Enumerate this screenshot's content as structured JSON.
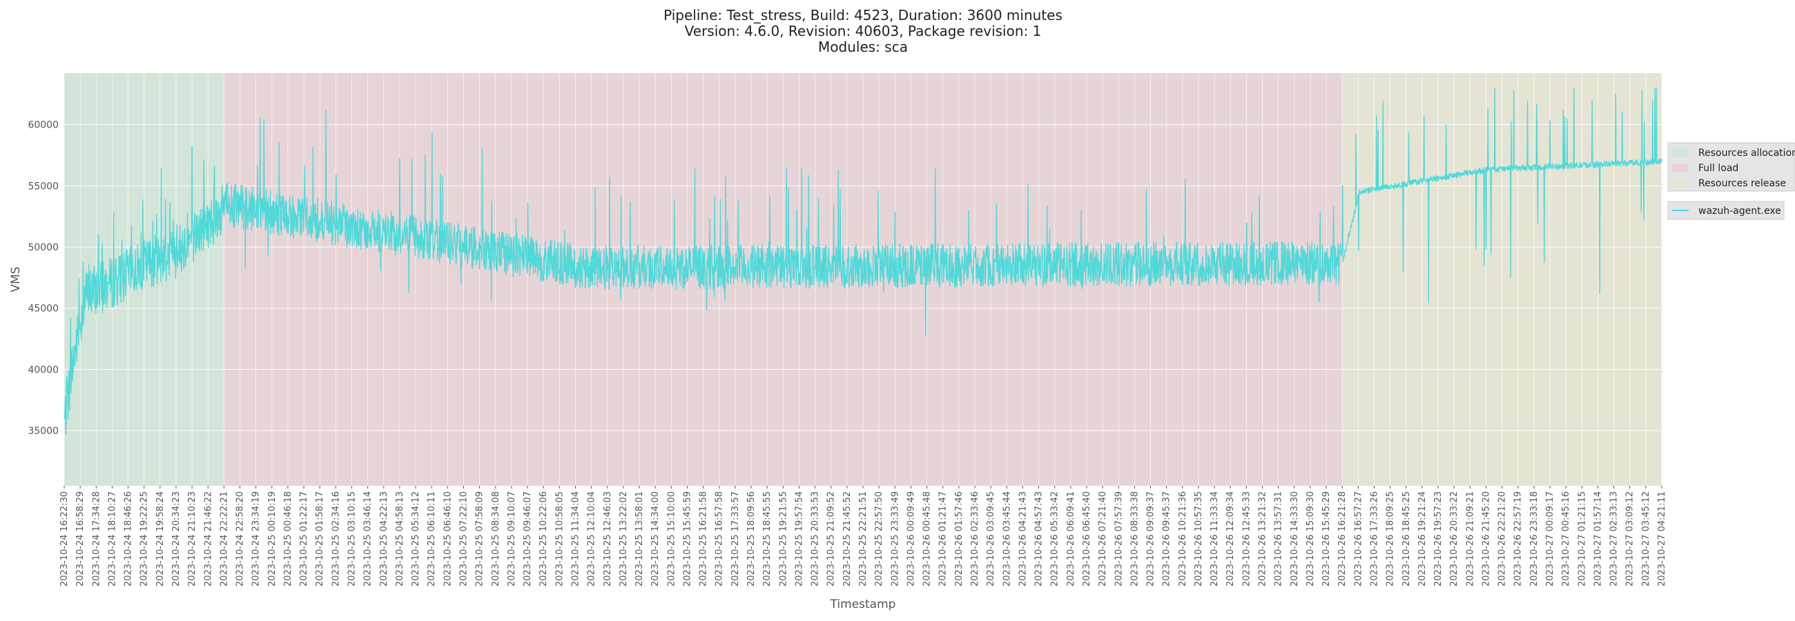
{
  "chart_data": {
    "type": "line",
    "title_lines": [
      "Pipeline: Test_stress, Build: 4523, Duration: 3600 minutes",
      "Version: 4.6.0, Revision: 40603, Package revision: 1",
      "Modules: sca"
    ],
    "xlabel": "Timestamp",
    "ylabel": "VMS",
    "ylim": [
      30500,
      64200
    ],
    "yticks": [
      35000,
      40000,
      45000,
      50000,
      55000,
      60000
    ],
    "grid": true,
    "legend_placement": "right, outside plot area",
    "x_ticks": [
      "2023-10-24 16:22:30",
      "2023-10-24 16:58:29",
      "2023-10-24 17:34:28",
      "2023-10-24 18:10:27",
      "2023-10-24 18:46:26",
      "2023-10-24 19:22:25",
      "2023-10-24 19:58:24",
      "2023-10-24 20:34:23",
      "2023-10-24 21:10:23",
      "2023-10-24 21:46:22",
      "2023-10-24 22:22:21",
      "2023-10-24 22:58:20",
      "2023-10-24 23:34:19",
      "2023-10-25 00:10:19",
      "2023-10-25 00:46:18",
      "2023-10-25 01:22:17",
      "2023-10-25 01:58:17",
      "2023-10-25 02:34:16",
      "2023-10-25 03:10:15",
      "2023-10-25 03:46:14",
      "2023-10-25 04:22:13",
      "2023-10-25 04:58:13",
      "2023-10-25 05:34:12",
      "2023-10-25 06:10:11",
      "2023-10-25 06:46:10",
      "2023-10-25 07:22:10",
      "2023-10-25 07:58:09",
      "2023-10-25 08:34:08",
      "2023-10-25 09:10:07",
      "2023-10-25 09:46:07",
      "2023-10-25 10:22:06",
      "2023-10-25 10:58:05",
      "2023-10-25 11:34:04",
      "2023-10-25 12:10:04",
      "2023-10-25 12:46:03",
      "2023-10-25 13:22:02",
      "2023-10-25 13:58:01",
      "2023-10-25 14:34:00",
      "2023-10-25 15:10:00",
      "2023-10-25 15:45:59",
      "2023-10-25 16:21:58",
      "2023-10-25 16:57:58",
      "2023-10-25 17:33:57",
      "2023-10-25 18:09:56",
      "2023-10-25 18:45:55",
      "2023-10-25 19:21:55",
      "2023-10-25 19:57:54",
      "2023-10-25 20:33:53",
      "2023-10-25 21:09:52",
      "2023-10-25 21:45:52",
      "2023-10-25 22:21:51",
      "2023-10-25 22:57:50",
      "2023-10-25 23:33:49",
      "2023-10-26 00:09:49",
      "2023-10-26 00:45:48",
      "2023-10-26 01:21:47",
      "2023-10-26 01:57:46",
      "2023-10-26 02:33:46",
      "2023-10-26 03:09:45",
      "2023-10-26 03:45:44",
      "2023-10-26 04:21:43",
      "2023-10-26 04:57:43",
      "2023-10-26 05:33:42",
      "2023-10-26 06:09:41",
      "2023-10-26 06:45:40",
      "2023-10-26 07:21:40",
      "2023-10-26 07:57:39",
      "2023-10-26 08:33:38",
      "2023-10-26 09:09:37",
      "2023-10-26 09:45:37",
      "2023-10-26 10:21:36",
      "2023-10-26 10:57:35",
      "2023-10-26 11:33:34",
      "2023-10-26 12:09:34",
      "2023-10-26 12:45:33",
      "2023-10-26 13:21:32",
      "2023-10-26 13:57:31",
      "2023-10-26 14:33:30",
      "2023-10-26 15:09:30",
      "2023-10-26 15:45:29",
      "2023-10-26 16:21:28",
      "2023-10-26 16:57:27",
      "2023-10-26 17:33:26",
      "2023-10-26 18:09:25",
      "2023-10-26 18:45:25",
      "2023-10-26 19:21:24",
      "2023-10-26 19:57:23",
      "2023-10-26 20:33:22",
      "2023-10-26 21:09:21",
      "2023-10-26 21:45:20",
      "2023-10-26 22:21:20",
      "2023-10-26 22:57:19",
      "2023-10-26 23:33:18",
      "2023-10-27 00:09:17",
      "2023-10-27 00:45:16",
      "2023-10-27 01:21:15",
      "2023-10-27 01:57:14",
      "2023-10-27 02:33:13",
      "2023-10-27 03:09:12",
      "2023-10-27 03:45:12",
      "2023-10-27 04:21:11"
    ],
    "phases": [
      {
        "name": "Resources allocation",
        "start": "2023-10-24 16:22:30",
        "end": "2023-10-24 22:22:21",
        "color": "#d3e4d8"
      },
      {
        "name": "Full load",
        "start": "2023-10-24 22:22:21",
        "end": "2023-10-26 16:21:28",
        "color": "#e7d4d7"
      },
      {
        "name": "Resources release",
        "start": "2023-10-26 16:21:28",
        "end": "2023-10-27 04:21:11",
        "color": "#e5e4d4"
      }
    ],
    "series": [
      {
        "name": "wazuh-agent.exe",
        "color": "#4fd9d9",
        "approx_profile": [
          {
            "x": "2023-10-24 16:22:30",
            "y": 36000
          },
          {
            "x": "2023-10-24 16:40:00",
            "y": 40500
          },
          {
            "x": "2023-10-24 17:10:00",
            "y": 46500
          },
          {
            "x": "2023-10-24 18:10:27",
            "y": 47500
          },
          {
            "x": "2023-10-24 19:22:25",
            "y": 49000
          },
          {
            "x": "2023-10-24 20:34:23",
            "y": 50000
          },
          {
            "x": "2023-10-24 21:10:23",
            "y": 51200
          },
          {
            "x": "2023-10-24 22:22:21",
            "y": 53500
          },
          {
            "x": "2023-10-25 12:00:00",
            "y": 48300
          },
          {
            "x": "2023-10-26 16:21:28",
            "y": 48700
          },
          {
            "x": "2023-10-26 17:00:00",
            "y": 54500
          },
          {
            "x": "2023-10-26 21:45:20",
            "y": 56300
          },
          {
            "x": "2023-10-27 04:21:11",
            "y": 57000
          }
        ],
        "approx_min": 33500,
        "approx_max": 63000
      }
    ]
  },
  "legend": {
    "phases": [
      "Resources allocation",
      "Full load",
      "Resources release"
    ],
    "series": [
      "wazuh-agent.exe"
    ]
  }
}
